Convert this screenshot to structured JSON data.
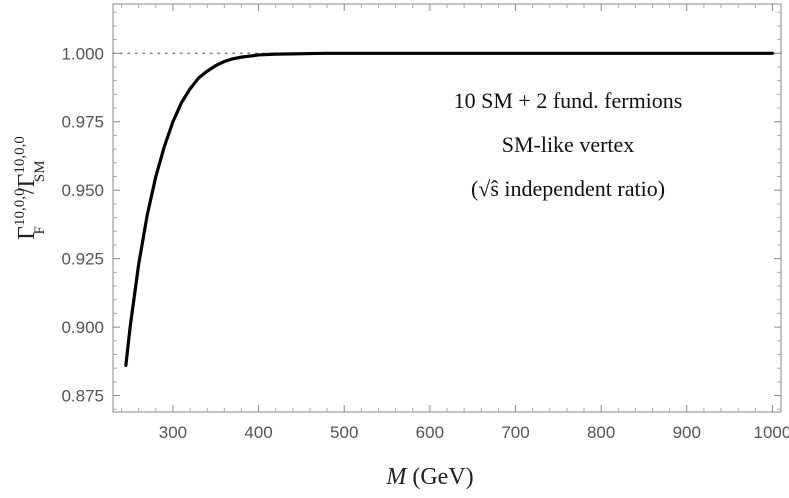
{
  "chart_data": {
    "type": "line",
    "xlabel": "M (GeV)",
    "ylabel": "Γ_F^{10,0,0} / Γ_SM^{10,0,0}",
    "xlim": [
      230,
      1010
    ],
    "ylim": [
      0.869,
      1.018
    ],
    "x_ticks": [
      300,
      400,
      500,
      600,
      700,
      800,
      900,
      1000
    ],
    "y_ticks": [
      0.875,
      0.9,
      0.925,
      0.95,
      0.975,
      1.0
    ],
    "x_tick_labels": [
      "300",
      "400",
      "500",
      "600",
      "700",
      "800",
      "900",
      "1000"
    ],
    "y_tick_labels": [
      "0.875",
      "0.900",
      "0.925",
      "0.950",
      "0.975",
      "1.000"
    ],
    "reference_line": {
      "y": 1.0,
      "style": "dotted",
      "color": "#888888"
    },
    "grid": false,
    "annotation": [
      "10 SM + 2 fund. fermions",
      "SM-like vertex",
      "(√ŝ independent ratio)"
    ],
    "series": [
      {
        "color": "#000000",
        "x": [
          245,
          250,
          260,
          270,
          280,
          290,
          300,
          310,
          320,
          330,
          340,
          350,
          360,
          370,
          380,
          390,
          400,
          420,
          440,
          460,
          480,
          500,
          550,
          600,
          700,
          800,
          900,
          1000
        ],
        "y": [
          0.886,
          0.9,
          0.923,
          0.941,
          0.955,
          0.966,
          0.975,
          0.982,
          0.987,
          0.991,
          0.9935,
          0.9955,
          0.997,
          0.998,
          0.9986,
          0.999,
          0.9994,
          0.9997,
          0.9998,
          0.9999,
          1.0,
          1.0,
          1.0,
          1.0,
          1.0,
          1.0,
          1.0,
          1.0
        ]
      }
    ]
  }
}
